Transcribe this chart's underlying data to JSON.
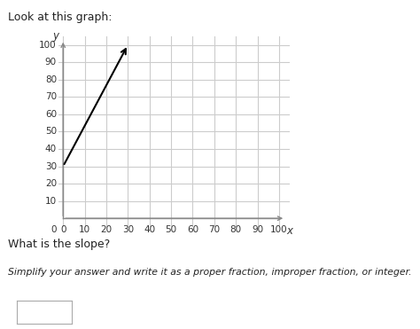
{
  "line_x": [
    0,
    30
  ],
  "line_y": [
    30,
    100
  ],
  "xlim": [
    -2,
    105
  ],
  "ylim": [
    -5,
    105
  ],
  "xticks": [
    0,
    10,
    20,
    30,
    40,
    50,
    60,
    70,
    80,
    90,
    100
  ],
  "yticks": [
    10,
    20,
    30,
    40,
    50,
    60,
    70,
    80,
    90,
    100
  ],
  "xlabel": "x",
  "ylabel": "y",
  "line_color": "#000000",
  "grid_color": "#cccccc",
  "axis_color": "#888888",
  "bg_color": "#ffffff",
  "text_above": "Look at this graph:",
  "text_question": "What is the slope?",
  "text_instruction": "Simplify your answer and write it as a proper fraction, improper fraction, or integer.",
  "tick_fontsize": 7.5,
  "label_fontsize": 8.5
}
